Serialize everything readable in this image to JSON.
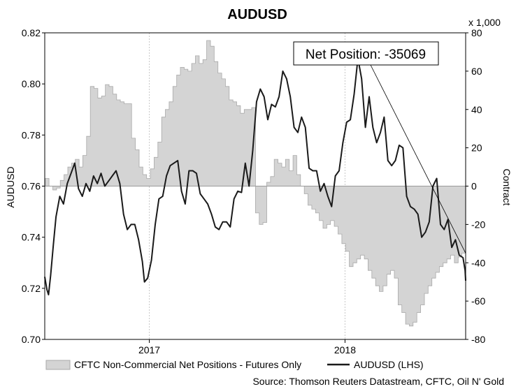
{
  "colors": {
    "line": "#1a1a1a",
    "area_fill": "#d4d4d4",
    "area_stroke": "#a9a9a9",
    "axis": "#000000",
    "grid": "#c8c8c8"
  },
  "chart_data": {
    "type": "line",
    "title": "AUDUSD",
    "ylabel": "AUDUSD",
    "y2label": "Contract",
    "y2_unit_label": "x 1,000",
    "ylim": [
      0.7,
      0.82
    ],
    "y_ticks": [
      "0.82",
      "0.80",
      "0.78",
      "0.76",
      "0.74",
      "0.72",
      "0.70"
    ],
    "y2lim": [
      -80,
      80
    ],
    "y2_ticks": [
      "80",
      "60",
      "40",
      "20",
      "0",
      "-20",
      "-40",
      "-60",
      "-80"
    ],
    "xlim": [
      "2016-06-20",
      "2018-08-14"
    ],
    "x_ticks": [
      {
        "x": "2017-01-01",
        "label": "2017"
      },
      {
        "x": "2018-01-01",
        "label": "2018"
      }
    ],
    "grid": "vertical dotted at year boundaries",
    "legend_position": "bottom",
    "source_text": "Source: Thomson Reuters Datastream, CFTC, Oil N' Gold",
    "annotation": {
      "text": "Net Position: -35069",
      "points_to": {
        "x": "2018-08-14",
        "y2": -35
      }
    },
    "series": [
      {
        "name": "CFTC Non-Commercial Net Positions - Futures Only",
        "type": "area",
        "axis": "right",
        "points": [
          [
            "2016-06-21",
            4
          ],
          [
            "2016-06-28",
            0
          ],
          [
            "2016-07-05",
            -2
          ],
          [
            "2016-07-12",
            -1
          ],
          [
            "2016-07-19",
            3
          ],
          [
            "2016-07-26",
            6
          ],
          [
            "2016-08-02",
            10
          ],
          [
            "2016-08-09",
            12
          ],
          [
            "2016-08-16",
            14
          ],
          [
            "2016-08-23",
            10
          ],
          [
            "2016-08-30",
            16
          ],
          [
            "2016-09-06",
            26
          ],
          [
            "2016-09-13",
            52
          ],
          [
            "2016-09-20",
            51
          ],
          [
            "2016-09-27",
            46
          ],
          [
            "2016-10-04",
            47
          ],
          [
            "2016-10-11",
            53
          ],
          [
            "2016-10-18",
            52
          ],
          [
            "2016-10-25",
            48
          ],
          [
            "2016-11-01",
            45
          ],
          [
            "2016-11-08",
            44
          ],
          [
            "2016-11-15",
            43
          ],
          [
            "2016-11-22",
            43
          ],
          [
            "2016-11-29",
            25
          ],
          [
            "2016-12-06",
            19
          ],
          [
            "2016-12-13",
            10
          ],
          [
            "2016-12-20",
            6
          ],
          [
            "2016-12-27",
            4
          ],
          [
            "2017-01-03",
            9
          ],
          [
            "2017-01-10",
            15
          ],
          [
            "2017-01-17",
            23
          ],
          [
            "2017-01-24",
            36
          ],
          [
            "2017-01-31",
            40
          ],
          [
            "2017-02-07",
            44
          ],
          [
            "2017-02-14",
            52
          ],
          [
            "2017-02-21",
            58
          ],
          [
            "2017-02-28",
            62
          ],
          [
            "2017-03-07",
            61
          ],
          [
            "2017-03-14",
            60
          ],
          [
            "2017-03-21",
            64
          ],
          [
            "2017-03-28",
            68
          ],
          [
            "2017-04-04",
            64
          ],
          [
            "2017-04-11",
            66
          ],
          [
            "2017-04-18",
            76
          ],
          [
            "2017-04-25",
            73
          ],
          [
            "2017-05-02",
            65
          ],
          [
            "2017-05-09",
            59
          ],
          [
            "2017-05-16",
            56
          ],
          [
            "2017-05-23",
            52
          ],
          [
            "2017-05-30",
            45
          ],
          [
            "2017-06-06",
            44
          ],
          [
            "2017-06-13",
            42
          ],
          [
            "2017-06-20",
            38
          ],
          [
            "2017-06-27",
            40
          ],
          [
            "2017-07-04",
            40
          ],
          [
            "2017-07-11",
            41
          ],
          [
            "2017-07-18",
            -14
          ],
          [
            "2017-07-25",
            -20
          ],
          [
            "2017-08-01",
            -19
          ],
          [
            "2017-08-08",
            2
          ],
          [
            "2017-08-15",
            5
          ],
          [
            "2017-08-22",
            14
          ],
          [
            "2017-08-29",
            12
          ],
          [
            "2017-09-05",
            10
          ],
          [
            "2017-09-12",
            14
          ],
          [
            "2017-09-19",
            8
          ],
          [
            "2017-09-26",
            16
          ],
          [
            "2017-10-03",
            6
          ],
          [
            "2017-10-10",
            0
          ],
          [
            "2017-10-17",
            -4
          ],
          [
            "2017-10-24",
            -10
          ],
          [
            "2017-10-31",
            -12
          ],
          [
            "2017-11-07",
            -14
          ],
          [
            "2017-11-14",
            -18
          ],
          [
            "2017-11-21",
            -22
          ],
          [
            "2017-11-28",
            -20
          ],
          [
            "2017-12-05",
            -18
          ],
          [
            "2017-12-12",
            -21
          ],
          [
            "2017-12-19",
            -25
          ],
          [
            "2017-12-26",
            -30
          ],
          [
            "2018-01-02",
            -34
          ],
          [
            "2018-01-09",
            -42
          ],
          [
            "2018-01-16",
            -40
          ],
          [
            "2018-01-23",
            -38
          ],
          [
            "2018-01-30",
            -36
          ],
          [
            "2018-02-06",
            -38
          ],
          [
            "2018-02-13",
            -44
          ],
          [
            "2018-02-20",
            -48
          ],
          [
            "2018-02-27",
            -52
          ],
          [
            "2018-03-06",
            -55
          ],
          [
            "2018-03-13",
            -52
          ],
          [
            "2018-03-20",
            -46
          ],
          [
            "2018-03-27",
            -44
          ],
          [
            "2018-04-03",
            -48
          ],
          [
            "2018-04-10",
            -62
          ],
          [
            "2018-04-17",
            -66
          ],
          [
            "2018-04-24",
            -72
          ],
          [
            "2018-05-01",
            -73
          ],
          [
            "2018-05-08",
            -71
          ],
          [
            "2018-05-15",
            -66
          ],
          [
            "2018-05-22",
            -62
          ],
          [
            "2018-05-29",
            -56
          ],
          [
            "2018-06-05",
            -52
          ],
          [
            "2018-06-12",
            -48
          ],
          [
            "2018-06-19",
            -45
          ],
          [
            "2018-06-26",
            -42
          ],
          [
            "2018-07-03",
            -40
          ],
          [
            "2018-07-10",
            -38
          ],
          [
            "2018-07-17",
            -36
          ],
          [
            "2018-07-24",
            -40
          ],
          [
            "2018-07-31",
            -37
          ],
          [
            "2018-08-07",
            -35
          ],
          [
            "2018-08-14",
            -35
          ]
        ]
      },
      {
        "name": "AUDUSD (LHS)",
        "type": "line",
        "axis": "left",
        "points": [
          [
            "2016-06-20",
            0.7245
          ],
          [
            "2016-06-24",
            0.7195
          ],
          [
            "2016-06-27",
            0.7175
          ],
          [
            "2016-07-01",
            0.725
          ],
          [
            "2016-07-06",
            0.737
          ],
          [
            "2016-07-11",
            0.748
          ],
          [
            "2016-07-18",
            0.756
          ],
          [
            "2016-07-25",
            0.753
          ],
          [
            "2016-08-01",
            0.761
          ],
          [
            "2016-08-08",
            0.765
          ],
          [
            "2016-08-15",
            0.769
          ],
          [
            "2016-08-22",
            0.759
          ],
          [
            "2016-08-29",
            0.756
          ],
          [
            "2016-09-05",
            0.761
          ],
          [
            "2016-09-12",
            0.758
          ],
          [
            "2016-09-19",
            0.764
          ],
          [
            "2016-09-26",
            0.761
          ],
          [
            "2016-10-03",
            0.765
          ],
          [
            "2016-10-10",
            0.76
          ],
          [
            "2016-10-17",
            0.762
          ],
          [
            "2016-10-24",
            0.764
          ],
          [
            "2016-10-31",
            0.766
          ],
          [
            "2016-11-07",
            0.761
          ],
          [
            "2016-11-14",
            0.749
          ],
          [
            "2016-11-21",
            0.743
          ],
          [
            "2016-11-28",
            0.745
          ],
          [
            "2016-12-05",
            0.745
          ],
          [
            "2016-12-12",
            0.739
          ],
          [
            "2016-12-19",
            0.7305
          ],
          [
            "2016-12-23",
            0.7225
          ],
          [
            "2016-12-29",
            0.724
          ],
          [
            "2017-01-05",
            0.731
          ],
          [
            "2017-01-12",
            0.745
          ],
          [
            "2017-01-19",
            0.755
          ],
          [
            "2017-01-26",
            0.756
          ],
          [
            "2017-02-02",
            0.764
          ],
          [
            "2017-02-09",
            0.768
          ],
          [
            "2017-02-16",
            0.769
          ],
          [
            "2017-02-23",
            0.77
          ],
          [
            "2017-03-02",
            0.758
          ],
          [
            "2017-03-09",
            0.753
          ],
          [
            "2017-03-16",
            0.766
          ],
          [
            "2017-03-23",
            0.766
          ],
          [
            "2017-03-30",
            0.765
          ],
          [
            "2017-04-06",
            0.757
          ],
          [
            "2017-04-13",
            0.755
          ],
          [
            "2017-04-20",
            0.753
          ],
          [
            "2017-04-27",
            0.749
          ],
          [
            "2017-05-04",
            0.744
          ],
          [
            "2017-05-11",
            0.743
          ],
          [
            "2017-05-18",
            0.746
          ],
          [
            "2017-05-25",
            0.746
          ],
          [
            "2017-06-01",
            0.744
          ],
          [
            "2017-06-08",
            0.755
          ],
          [
            "2017-06-15",
            0.758
          ],
          [
            "2017-06-22",
            0.7575
          ],
          [
            "2017-06-29",
            0.769
          ],
          [
            "2017-07-06",
            0.76
          ],
          [
            "2017-07-13",
            0.774
          ],
          [
            "2017-07-20",
            0.793
          ],
          [
            "2017-07-27",
            0.798
          ],
          [
            "2017-08-03",
            0.795
          ],
          [
            "2017-08-10",
            0.786
          ],
          [
            "2017-08-17",
            0.792
          ],
          [
            "2017-08-24",
            0.791
          ],
          [
            "2017-08-31",
            0.795
          ],
          [
            "2017-09-07",
            0.805
          ],
          [
            "2017-09-14",
            0.802
          ],
          [
            "2017-09-21",
            0.795
          ],
          [
            "2017-09-28",
            0.783
          ],
          [
            "2017-10-05",
            0.781
          ],
          [
            "2017-10-12",
            0.787
          ],
          [
            "2017-10-19",
            0.783
          ],
          [
            "2017-10-26",
            0.767
          ],
          [
            "2017-11-02",
            0.766
          ],
          [
            "2017-11-09",
            0.766
          ],
          [
            "2017-11-16",
            0.758
          ],
          [
            "2017-11-23",
            0.761
          ],
          [
            "2017-11-30",
            0.756
          ],
          [
            "2017-12-07",
            0.752
          ],
          [
            "2017-12-14",
            0.764
          ],
          [
            "2017-12-21",
            0.766
          ],
          [
            "2017-12-28",
            0.777
          ],
          [
            "2018-01-04",
            0.785
          ],
          [
            "2018-01-11",
            0.786
          ],
          [
            "2018-01-18",
            0.796
          ],
          [
            "2018-01-25",
            0.81
          ],
          [
            "2018-02-01",
            0.802
          ],
          [
            "2018-02-08",
            0.783
          ],
          [
            "2018-02-15",
            0.795
          ],
          [
            "2018-02-22",
            0.783
          ],
          [
            "2018-03-01",
            0.777
          ],
          [
            "2018-03-08",
            0.781
          ],
          [
            "2018-03-15",
            0.787
          ],
          [
            "2018-03-22",
            0.77
          ],
          [
            "2018-03-29",
            0.768
          ],
          [
            "2018-04-05",
            0.77
          ],
          [
            "2018-04-12",
            0.776
          ],
          [
            "2018-04-19",
            0.775
          ],
          [
            "2018-04-26",
            0.756
          ],
          [
            "2018-05-03",
            0.752
          ],
          [
            "2018-05-10",
            0.751
          ],
          [
            "2018-05-17",
            0.749
          ],
          [
            "2018-05-24",
            0.74
          ],
          [
            "2018-05-31",
            0.742
          ],
          [
            "2018-06-07",
            0.746
          ],
          [
            "2018-06-14",
            0.76
          ],
          [
            "2018-06-21",
            0.763
          ],
          [
            "2018-06-28",
            0.745
          ],
          [
            "2018-07-05",
            0.743
          ],
          [
            "2018-07-12",
            0.747
          ],
          [
            "2018-07-19",
            0.736
          ],
          [
            "2018-07-26",
            0.739
          ],
          [
            "2018-08-02",
            0.733
          ],
          [
            "2018-08-09",
            0.732
          ],
          [
            "2018-08-13",
            0.727
          ],
          [
            "2018-08-14",
            0.723
          ]
        ]
      }
    ]
  }
}
